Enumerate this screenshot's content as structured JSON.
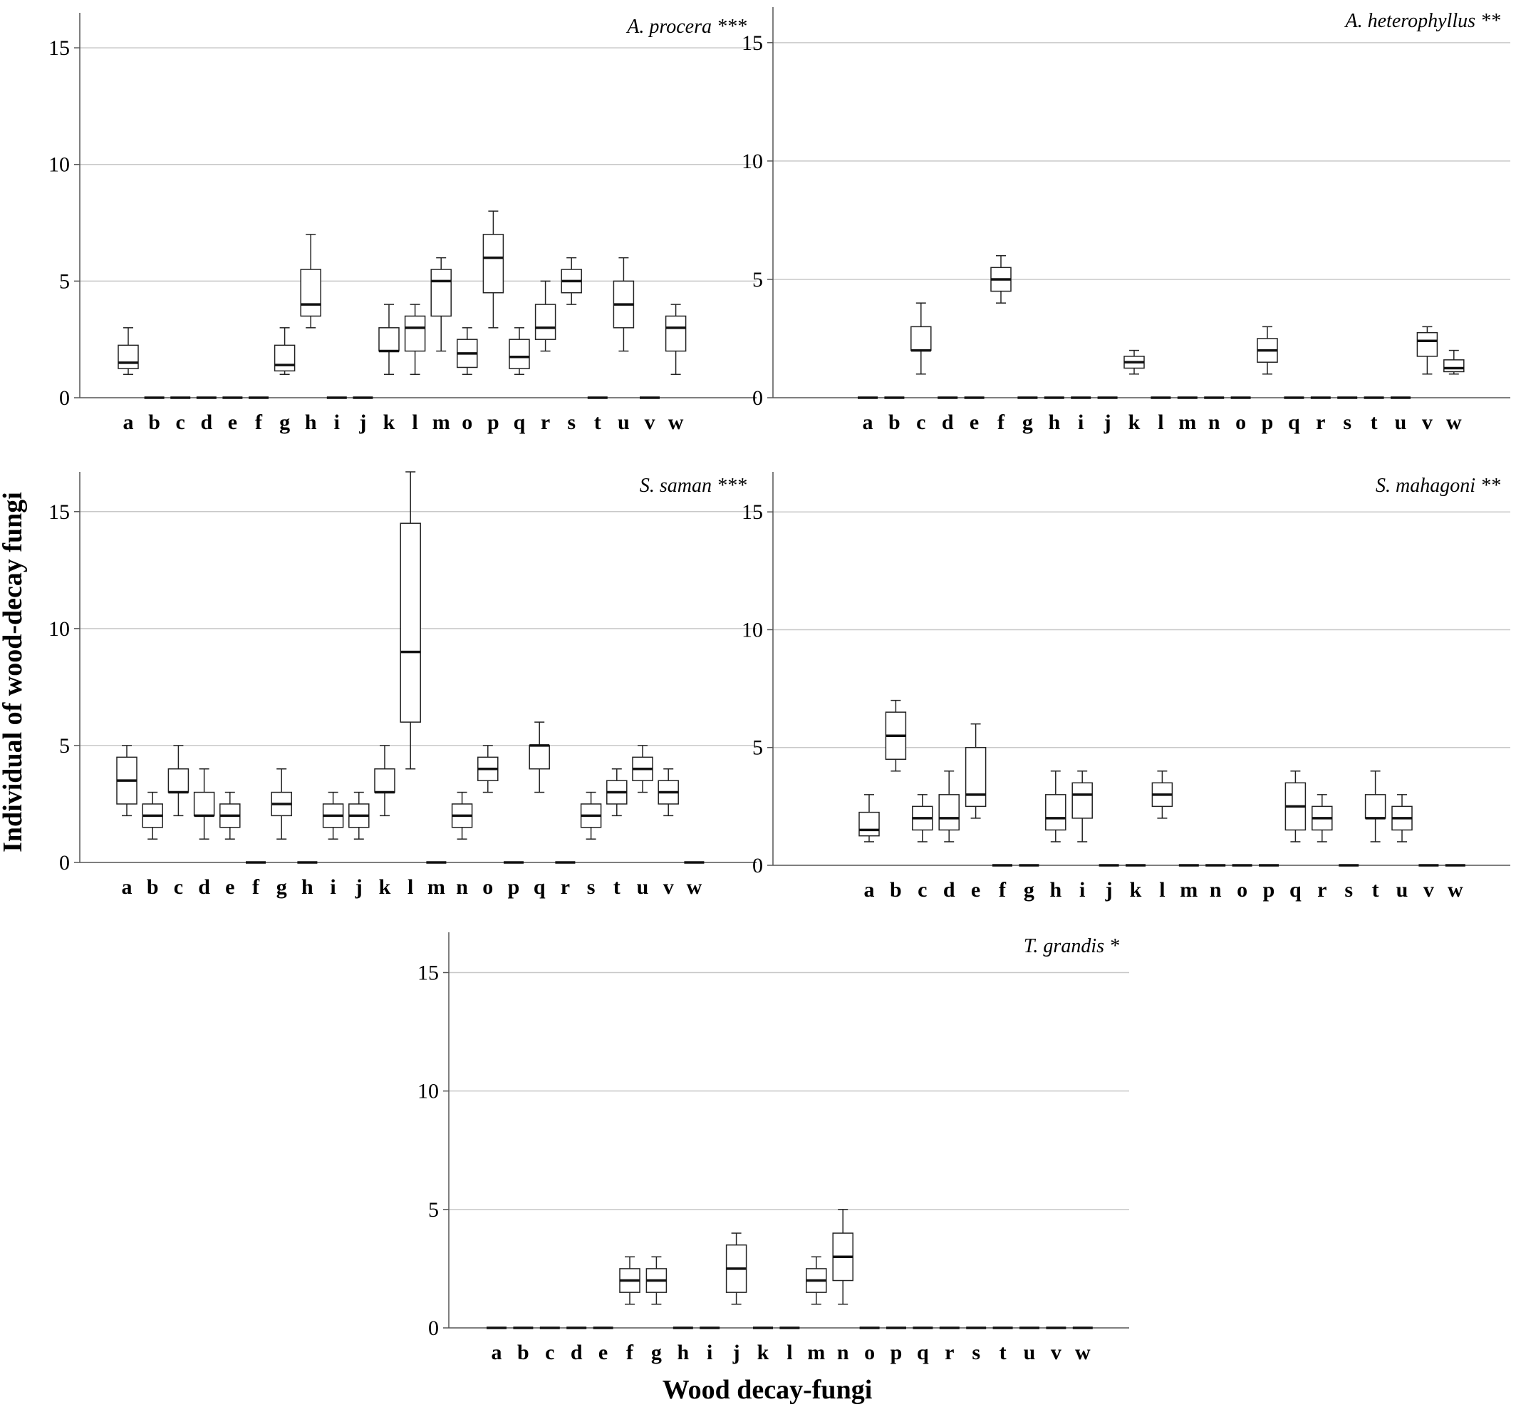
{
  "figure": {
    "xlabel": "Wood decay-fungi",
    "ylabel": "Individual of wood-decay fungi"
  },
  "chart_data": [
    {
      "type": "box",
      "title": "A. procera ***",
      "ylim": [
        0,
        16.5
      ],
      "yticks": [
        0,
        5,
        10,
        15
      ],
      "grid": true,
      "categories": [
        "a",
        "b",
        "c",
        "d",
        "e",
        "f",
        "g",
        "h",
        "i",
        "j",
        "k",
        "l",
        "m",
        "o",
        "p",
        "q",
        "r",
        "s",
        "t",
        "u",
        "v",
        "w"
      ],
      "boxes": [
        {
          "min": 1,
          "q1": 1.25,
          "median": 1.5,
          "q3": 2.25,
          "max": 3
        },
        {
          "min": 0,
          "q1": 0,
          "median": 0,
          "q3": 0,
          "max": 0
        },
        {
          "min": 0,
          "q1": 0,
          "median": 0,
          "q3": 0,
          "max": 0
        },
        {
          "min": 0,
          "q1": 0,
          "median": 0,
          "q3": 0,
          "max": 0
        },
        {
          "min": 0,
          "q1": 0,
          "median": 0,
          "q3": 0,
          "max": 0
        },
        {
          "min": 0,
          "q1": 0,
          "median": 0,
          "q3": 0,
          "max": 0
        },
        {
          "min": 1,
          "q1": 1.15,
          "median": 1.4,
          "q3": 2.25,
          "max": 3
        },
        {
          "min": 3,
          "q1": 3.5,
          "median": 4,
          "q3": 5.5,
          "max": 7
        },
        {
          "min": 0,
          "q1": 0,
          "median": 0,
          "q3": 0,
          "max": 0
        },
        {
          "min": 0,
          "q1": 0,
          "median": 0,
          "q3": 0,
          "max": 0
        },
        {
          "min": 1,
          "q1": 2,
          "median": 2,
          "q3": 3,
          "max": 4
        },
        {
          "min": 1,
          "q1": 2,
          "median": 3,
          "q3": 3.5,
          "max": 4
        },
        {
          "min": 2,
          "q1": 3.5,
          "median": 5,
          "q3": 5.5,
          "max": 6
        },
        {
          "min": 1,
          "q1": 1.3,
          "median": 1.9,
          "q3": 2.5,
          "max": 3
        },
        {
          "min": 3,
          "q1": 4.5,
          "median": 6,
          "q3": 7,
          "max": 8
        },
        {
          "min": 1,
          "q1": 1.25,
          "median": 1.75,
          "q3": 2.5,
          "max": 3
        },
        {
          "min": 2,
          "q1": 2.5,
          "median": 3,
          "q3": 4,
          "max": 5
        },
        {
          "min": 4,
          "q1": 4.5,
          "median": 5,
          "q3": 5.5,
          "max": 6
        },
        {
          "min": 0,
          "q1": 0,
          "median": 0,
          "q3": 0,
          "max": 0
        },
        {
          "min": 2,
          "q1": 3,
          "median": 4,
          "q3": 5,
          "max": 6
        },
        {
          "min": 0,
          "q1": 0,
          "median": 0,
          "q3": 0,
          "max": 0
        },
        {
          "min": 1,
          "q1": 2,
          "median": 3,
          "q3": 3.5,
          "max": 4
        }
      ]
    },
    {
      "type": "box",
      "title": "A. heterophyllus **",
      "ylim": [
        0,
        16.5
      ],
      "yticks": [
        0,
        5,
        10,
        15
      ],
      "grid": true,
      "categories": [
        "a",
        "b",
        "c",
        "d",
        "e",
        "f",
        "g",
        "h",
        "i",
        "j",
        "k",
        "l",
        "m",
        "n",
        "o",
        "p",
        "q",
        "r",
        "s",
        "t",
        "u",
        "v",
        "w"
      ],
      "boxes": [
        {
          "min": 0,
          "q1": 0,
          "median": 0,
          "q3": 0,
          "max": 0
        },
        {
          "min": 0,
          "q1": 0,
          "median": 0,
          "q3": 0,
          "max": 0
        },
        {
          "min": 1,
          "q1": 2,
          "median": 2,
          "q3": 3,
          "max": 4
        },
        {
          "min": 0,
          "q1": 0,
          "median": 0,
          "q3": 0,
          "max": 0
        },
        {
          "min": 0,
          "q1": 0,
          "median": 0,
          "q3": 0,
          "max": 0
        },
        {
          "min": 4,
          "q1": 4.5,
          "median": 5,
          "q3": 5.5,
          "max": 6
        },
        {
          "min": 0,
          "q1": 0,
          "median": 0,
          "q3": 0,
          "max": 0
        },
        {
          "min": 0,
          "q1": 0,
          "median": 0,
          "q3": 0,
          "max": 0
        },
        {
          "min": 0,
          "q1": 0,
          "median": 0,
          "q3": 0,
          "max": 0
        },
        {
          "min": 0,
          "q1": 0,
          "median": 0,
          "q3": 0,
          "max": 0
        },
        {
          "min": 1,
          "q1": 1.25,
          "median": 1.5,
          "q3": 1.75,
          "max": 2
        },
        {
          "min": 0,
          "q1": 0,
          "median": 0,
          "q3": 0,
          "max": 0
        },
        {
          "min": 0,
          "q1": 0,
          "median": 0,
          "q3": 0,
          "max": 0
        },
        {
          "min": 0,
          "q1": 0,
          "median": 0,
          "q3": 0,
          "max": 0
        },
        {
          "min": 0,
          "q1": 0,
          "median": 0,
          "q3": 0,
          "max": 0
        },
        {
          "min": 1,
          "q1": 1.5,
          "median": 2,
          "q3": 2.5,
          "max": 3
        },
        {
          "min": 0,
          "q1": 0,
          "median": 0,
          "q3": 0,
          "max": 0
        },
        {
          "min": 0,
          "q1": 0,
          "median": 0,
          "q3": 0,
          "max": 0
        },
        {
          "min": 0,
          "q1": 0,
          "median": 0,
          "q3": 0,
          "max": 0
        },
        {
          "min": 0,
          "q1": 0,
          "median": 0,
          "q3": 0,
          "max": 0
        },
        {
          "min": 0,
          "q1": 0,
          "median": 0,
          "q3": 0,
          "max": 0
        },
        {
          "min": 1,
          "q1": 1.75,
          "median": 2.4,
          "q3": 2.75,
          "max": 3
        },
        {
          "min": 1,
          "q1": 1.1,
          "median": 1.25,
          "q3": 1.6,
          "max": 2
        }
      ]
    },
    {
      "type": "box",
      "title": "S. saman ***",
      "ylim": [
        0,
        16.7
      ],
      "yticks": [
        0,
        5,
        10,
        15
      ],
      "grid": true,
      "categories": [
        "a",
        "b",
        "c",
        "d",
        "e",
        "f",
        "g",
        "h",
        "i",
        "j",
        "k",
        "l",
        "m",
        "n",
        "o",
        "p",
        "q",
        "r",
        "s",
        "t",
        "u",
        "v",
        "w"
      ],
      "boxes": [
        {
          "min": 2,
          "q1": 2.5,
          "median": 3.5,
          "q3": 4.5,
          "max": 5
        },
        {
          "min": 1,
          "q1": 1.5,
          "median": 2,
          "q3": 2.5,
          "max": 3
        },
        {
          "min": 2,
          "q1": 3,
          "median": 3,
          "q3": 4,
          "max": 5
        },
        {
          "min": 1,
          "q1": 2,
          "median": 2,
          "q3": 3,
          "max": 4
        },
        {
          "min": 1,
          "q1": 1.5,
          "median": 2,
          "q3": 2.5,
          "max": 3
        },
        {
          "min": 0,
          "q1": 0,
          "median": 0,
          "q3": 0,
          "max": 0
        },
        {
          "min": 1,
          "q1": 2,
          "median": 2.5,
          "q3": 3,
          "max": 4
        },
        {
          "min": 0,
          "q1": 0,
          "median": 0,
          "q3": 0,
          "max": 0
        },
        {
          "min": 1,
          "q1": 1.5,
          "median": 2,
          "q3": 2.5,
          "max": 3
        },
        {
          "min": 1,
          "q1": 1.5,
          "median": 2,
          "q3": 2.5,
          "max": 3
        },
        {
          "min": 2,
          "q1": 3,
          "median": 3,
          "q3": 4,
          "max": 5
        },
        {
          "min": 4,
          "q1": 6,
          "median": 9,
          "q3": 14.5,
          "max": 16.7
        },
        {
          "min": 0,
          "q1": 0,
          "median": 0,
          "q3": 0,
          "max": 0
        },
        {
          "min": 1,
          "q1": 1.5,
          "median": 2,
          "q3": 2.5,
          "max": 3
        },
        {
          "min": 3,
          "q1": 3.5,
          "median": 4,
          "q3": 4.5,
          "max": 5
        },
        {
          "min": 0,
          "q1": 0,
          "median": 0,
          "q3": 0,
          "max": 0
        },
        {
          "min": 3,
          "q1": 4,
          "median": 5,
          "q3": 5,
          "max": 6
        },
        {
          "min": 0,
          "q1": 0,
          "median": 0,
          "q3": 0,
          "max": 0
        },
        {
          "min": 1,
          "q1": 1.5,
          "median": 2,
          "q3": 2.5,
          "max": 3
        },
        {
          "min": 2,
          "q1": 2.5,
          "median": 3,
          "q3": 3.5,
          "max": 4
        },
        {
          "min": 3,
          "q1": 3.5,
          "median": 4,
          "q3": 4.5,
          "max": 5
        },
        {
          "min": 2,
          "q1": 2.5,
          "median": 3,
          "q3": 3.5,
          "max": 4
        },
        {
          "min": 0,
          "q1": 0,
          "median": 0,
          "q3": 0,
          "max": 0
        }
      ]
    },
    {
      "type": "box",
      "title": "S. mahagoni **",
      "ylim": [
        0,
        16.7
      ],
      "yticks": [
        0,
        5,
        10,
        15
      ],
      "grid": true,
      "categories": [
        "a",
        "b",
        "c",
        "d",
        "e",
        "f",
        "g",
        "h",
        "i",
        "j",
        "k",
        "l",
        "m",
        "n",
        "o",
        "p",
        "q",
        "r",
        "s",
        "t",
        "u",
        "v",
        "w"
      ],
      "boxes": [
        {
          "min": 1,
          "q1": 1.25,
          "median": 1.5,
          "q3": 2.25,
          "max": 3
        },
        {
          "min": 4,
          "q1": 4.5,
          "median": 5.5,
          "q3": 6.5,
          "max": 7
        },
        {
          "min": 1,
          "q1": 1.5,
          "median": 2,
          "q3": 2.5,
          "max": 3
        },
        {
          "min": 1,
          "q1": 1.5,
          "median": 2,
          "q3": 3,
          "max": 4
        },
        {
          "min": 2,
          "q1": 2.5,
          "median": 3,
          "q3": 5,
          "max": 6
        },
        {
          "min": 0,
          "q1": 0,
          "median": 0,
          "q3": 0,
          "max": 0
        },
        {
          "min": 0,
          "q1": 0,
          "median": 0,
          "q3": 0,
          "max": 0
        },
        {
          "min": 1,
          "q1": 1.5,
          "median": 2,
          "q3": 3,
          "max": 4
        },
        {
          "min": 1,
          "q1": 2,
          "median": 3,
          "q3": 3.5,
          "max": 4
        },
        {
          "min": 0,
          "q1": 0,
          "median": 0,
          "q3": 0,
          "max": 0
        },
        {
          "min": 0,
          "q1": 0,
          "median": 0,
          "q3": 0,
          "max": 0
        },
        {
          "min": 2,
          "q1": 2.5,
          "median": 3,
          "q3": 3.5,
          "max": 4
        },
        {
          "min": 0,
          "q1": 0,
          "median": 0,
          "q3": 0,
          "max": 0
        },
        {
          "min": 0,
          "q1": 0,
          "median": 0,
          "q3": 0,
          "max": 0
        },
        {
          "min": 0,
          "q1": 0,
          "median": 0,
          "q3": 0,
          "max": 0
        },
        {
          "min": 0,
          "q1": 0,
          "median": 0,
          "q3": 0,
          "max": 0
        },
        {
          "min": 1,
          "q1": 1.5,
          "median": 2.5,
          "q3": 3.5,
          "max": 4
        },
        {
          "min": 1,
          "q1": 1.5,
          "median": 2,
          "q3": 2.5,
          "max": 3
        },
        {
          "min": 0,
          "q1": 0,
          "median": 0,
          "q3": 0,
          "max": 0
        },
        {
          "min": 1,
          "q1": 2,
          "median": 2,
          "q3": 3,
          "max": 4
        },
        {
          "min": 1,
          "q1": 1.5,
          "median": 2,
          "q3": 2.5,
          "max": 3
        },
        {
          "min": 0,
          "q1": 0,
          "median": 0,
          "q3": 0,
          "max": 0
        },
        {
          "min": 0,
          "q1": 0,
          "median": 0,
          "q3": 0,
          "max": 0
        }
      ]
    },
    {
      "type": "box",
      "title": "T. grandis *",
      "ylim": [
        0,
        16.7
      ],
      "yticks": [
        0,
        5,
        10,
        15
      ],
      "grid": true,
      "categories": [
        "a",
        "b",
        "c",
        "d",
        "e",
        "f",
        "g",
        "h",
        "i",
        "j",
        "k",
        "l",
        "m",
        "n",
        "o",
        "p",
        "q",
        "r",
        "s",
        "t",
        "u",
        "v",
        "w"
      ],
      "boxes": [
        {
          "min": 0,
          "q1": 0,
          "median": 0,
          "q3": 0,
          "max": 0
        },
        {
          "min": 0,
          "q1": 0,
          "median": 0,
          "q3": 0,
          "max": 0
        },
        {
          "min": 0,
          "q1": 0,
          "median": 0,
          "q3": 0,
          "max": 0
        },
        {
          "min": 0,
          "q1": 0,
          "median": 0,
          "q3": 0,
          "max": 0
        },
        {
          "min": 0,
          "q1": 0,
          "median": 0,
          "q3": 0,
          "max": 0
        },
        {
          "min": 1,
          "q1": 1.5,
          "median": 2,
          "q3": 2.5,
          "max": 3
        },
        {
          "min": 1,
          "q1": 1.5,
          "median": 2,
          "q3": 2.5,
          "max": 3
        },
        {
          "min": 0,
          "q1": 0,
          "median": 0,
          "q3": 0,
          "max": 0
        },
        {
          "min": 0,
          "q1": 0,
          "median": 0,
          "q3": 0,
          "max": 0
        },
        {
          "min": 1,
          "q1": 1.5,
          "median": 2.5,
          "q3": 3.5,
          "max": 4
        },
        {
          "min": 0,
          "q1": 0,
          "median": 0,
          "q3": 0,
          "max": 0
        },
        {
          "min": 0,
          "q1": 0,
          "median": 0,
          "q3": 0,
          "max": 0
        },
        {
          "min": 1,
          "q1": 1.5,
          "median": 2,
          "q3": 2.5,
          "max": 3
        },
        {
          "min": 1,
          "q1": 2,
          "median": 3,
          "q3": 4,
          "max": 5
        },
        {
          "min": 0,
          "q1": 0,
          "median": 0,
          "q3": 0,
          "max": 0
        },
        {
          "min": 0,
          "q1": 0,
          "median": 0,
          "q3": 0,
          "max": 0
        },
        {
          "min": 0,
          "q1": 0,
          "median": 0,
          "q3": 0,
          "max": 0
        },
        {
          "min": 0,
          "q1": 0,
          "median": 0,
          "q3": 0,
          "max": 0
        },
        {
          "min": 0,
          "q1": 0,
          "median": 0,
          "q3": 0,
          "max": 0
        },
        {
          "min": 0,
          "q1": 0,
          "median": 0,
          "q3": 0,
          "max": 0
        },
        {
          "min": 0,
          "q1": 0,
          "median": 0,
          "q3": 0,
          "max": 0
        },
        {
          "min": 0,
          "q1": 0,
          "median": 0,
          "q3": 0,
          "max": 0
        },
        {
          "min": 0,
          "q1": 0,
          "median": 0,
          "q3": 0,
          "max": 0
        }
      ]
    }
  ]
}
